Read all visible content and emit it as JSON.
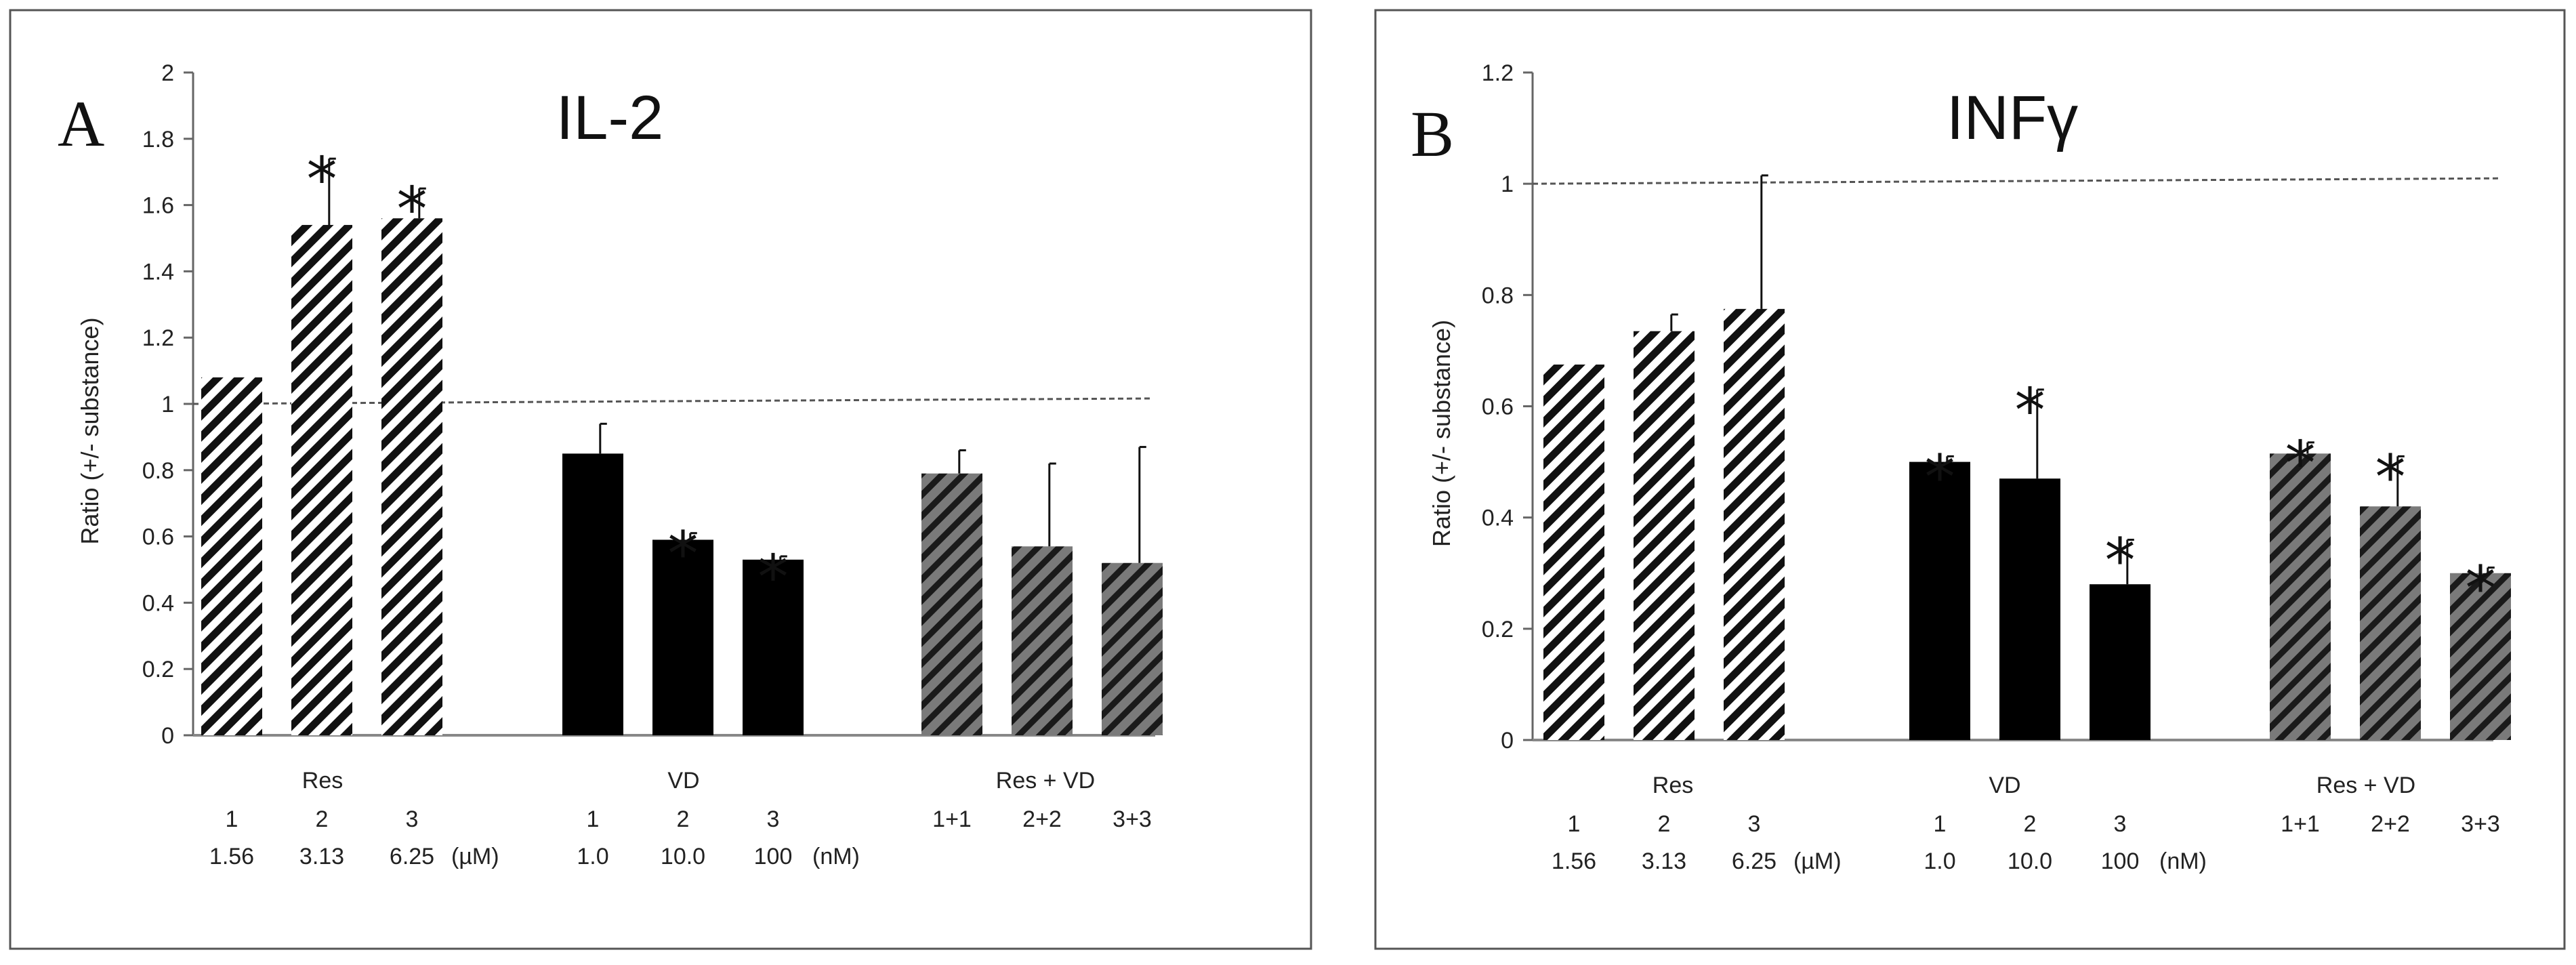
{
  "chart_data": [
    {
      "type": "bar",
      "panel_label": "A",
      "title": "IL-2",
      "ylabel": "Ratio (+/- substance)",
      "ylim": [
        0,
        2
      ],
      "yticks": [
        "0",
        "0.2",
        "0.4",
        "0.6",
        "0.8",
        "1",
        "1.2",
        "1.4",
        "1.6",
        "1.8",
        "2"
      ],
      "reference_line": 1,
      "groups": [
        {
          "name": "Res",
          "pattern": "hatch-white",
          "bars": [
            {
              "num": "1",
              "conc": "1.56",
              "value": 1.08,
              "err": 0,
              "sig": false
            },
            {
              "num": "2",
              "conc": "3.13",
              "value": 1.54,
              "err": 0.2,
              "sig": true
            },
            {
              "num": "3",
              "conc": "6.25",
              "value": 1.56,
              "err": 0.09,
              "sig": true
            }
          ],
          "unit": "(µM)"
        },
        {
          "name": "VD",
          "pattern": "solid",
          "bars": [
            {
              "num": "1",
              "conc": "1.0",
              "value": 0.85,
              "err": 0.09,
              "sig": false
            },
            {
              "num": "2",
              "conc": "10.0",
              "value": 0.59,
              "err": 0.02,
              "sig": true
            },
            {
              "num": "3",
              "conc": "100",
              "value": 0.53,
              "err": 0.01,
              "sig": true
            }
          ],
          "unit": "(nM)"
        },
        {
          "name": "Res + VD",
          "pattern": "hatch-grey",
          "bars": [
            {
              "num": "1+1",
              "conc": "",
              "value": 0.79,
              "err": 0.07,
              "sig": false
            },
            {
              "num": "2+2",
              "conc": "",
              "value": 0.57,
              "err": 0.25,
              "sig": false
            },
            {
              "num": "3+3",
              "conc": "",
              "value": 0.52,
              "err": 0.35,
              "sig": false
            }
          ],
          "unit": ""
        }
      ]
    },
    {
      "type": "bar",
      "panel_label": "B",
      "title": "INFγ",
      "ylabel": "Ratio (+/- substance)",
      "ylim": [
        0,
        1.2
      ],
      "yticks": [
        "0",
        "0.2",
        "0.4",
        "0.6",
        "0.8",
        "1",
        "1.2"
      ],
      "reference_line": 1,
      "groups": [
        {
          "name": "Res",
          "pattern": "hatch-white",
          "bars": [
            {
              "num": "1",
              "conc": "1.56",
              "value": 0.675,
              "err": 0,
              "sig": false
            },
            {
              "num": "2",
              "conc": "3.13",
              "value": 0.735,
              "err": 0.03,
              "sig": false
            },
            {
              "num": "3",
              "conc": "6.25",
              "value": 0.775,
              "err": 0.24,
              "sig": false
            }
          ],
          "unit": "(µM)"
        },
        {
          "name": "VD",
          "pattern": "solid",
          "bars": [
            {
              "num": "1",
              "conc": "1.0",
              "value": 0.5,
              "err": 0.01,
              "sig": true
            },
            {
              "num": "2",
              "conc": "10.0",
              "value": 0.47,
              "err": 0.16,
              "sig": true
            },
            {
              "num": "3",
              "conc": "100",
              "value": 0.28,
              "err": 0.08,
              "sig": true
            }
          ],
          "unit": "(nM)"
        },
        {
          "name": "Res + VD",
          "pattern": "hatch-grey",
          "bars": [
            {
              "num": "1+1",
              "conc": "",
              "value": 0.515,
              "err": 0.02,
              "sig": true
            },
            {
              "num": "2+2",
              "conc": "",
              "value": 0.42,
              "err": 0.09,
              "sig": true
            },
            {
              "num": "3+3",
              "conc": "",
              "value": 0.3,
              "err": 0.01,
              "sig": true
            }
          ],
          "unit": ""
        }
      ]
    }
  ],
  "significance_marker": "*"
}
